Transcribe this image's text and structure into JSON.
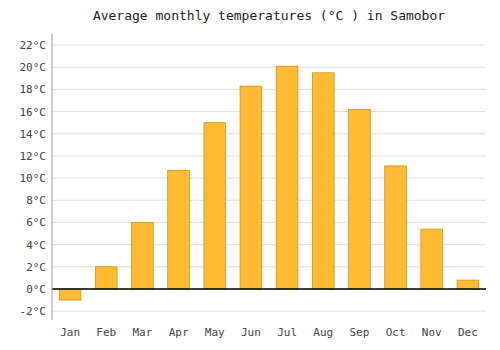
{
  "chart_data": {
    "type": "bar",
    "title": "Average monthly temperatures (°C ) in Samobor",
    "categories": [
      "Jan",
      "Feb",
      "Mar",
      "Apr",
      "May",
      "Jun",
      "Jul",
      "Aug",
      "Sep",
      "Oct",
      "Nov",
      "Dec"
    ],
    "values": [
      -1.0,
      2.0,
      6.0,
      10.7,
      15.0,
      18.3,
      20.1,
      19.5,
      16.2,
      11.1,
      5.4,
      0.8
    ],
    "color": "#FFBB33",
    "ylim": [
      -2.8,
      23.0
    ],
    "yticks": [
      {
        "value": -2,
        "label": "-2°C"
      },
      {
        "value": 0,
        "label": "0°C"
      },
      {
        "value": 2,
        "label": "2°C"
      },
      {
        "value": 4,
        "label": "4°C"
      },
      {
        "value": 6,
        "label": "6°C"
      },
      {
        "value": 8,
        "label": "8°C"
      },
      {
        "value": 10,
        "label": "10°C"
      },
      {
        "value": 12,
        "label": "12°C"
      },
      {
        "value": 14,
        "label": "14°C"
      },
      {
        "value": 16,
        "label": "16°C"
      },
      {
        "value": 18,
        "label": "18°C"
      },
      {
        "value": 20,
        "label": "20°C"
      },
      {
        "value": 22,
        "label": "22°C"
      }
    ],
    "grid": true
  }
}
